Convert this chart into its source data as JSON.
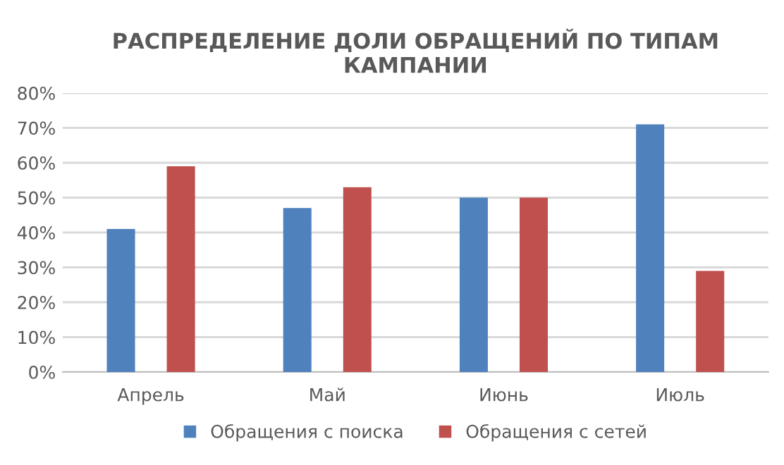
{
  "chart_data": {
    "type": "bar",
    "title": "РАСПРЕДЕЛЕНИЕ ДОЛИ ОБРАЩЕНИЙ ПО ТИПАМ КАМПАНИИ",
    "categories": [
      "Апрель",
      "Май",
      "Июнь",
      "Июль"
    ],
    "series": [
      {
        "name": "Обращения с поиска",
        "color": "#4f81bd",
        "values": [
          41,
          47,
          50,
          71
        ]
      },
      {
        "name": "Обращения с сетей",
        "color": "#c0504d",
        "values": [
          59,
          53,
          50,
          29
        ]
      }
    ],
    "ylim": [
      0,
      80
    ],
    "yticks": [
      {
        "value": 0,
        "label": "0%"
      },
      {
        "value": 10,
        "label": "10%"
      },
      {
        "value": 20,
        "label": "20%"
      },
      {
        "value": 30,
        "label": "30%"
      },
      {
        "value": 40,
        "label": "40%"
      },
      {
        "value": 50,
        "label": "50%"
      },
      {
        "value": 60,
        "label": "60%"
      },
      {
        "value": 70,
        "label": "70%"
      },
      {
        "value": 80,
        "label": "80%"
      }
    ],
    "grid": "y",
    "legend": "bottom"
  }
}
